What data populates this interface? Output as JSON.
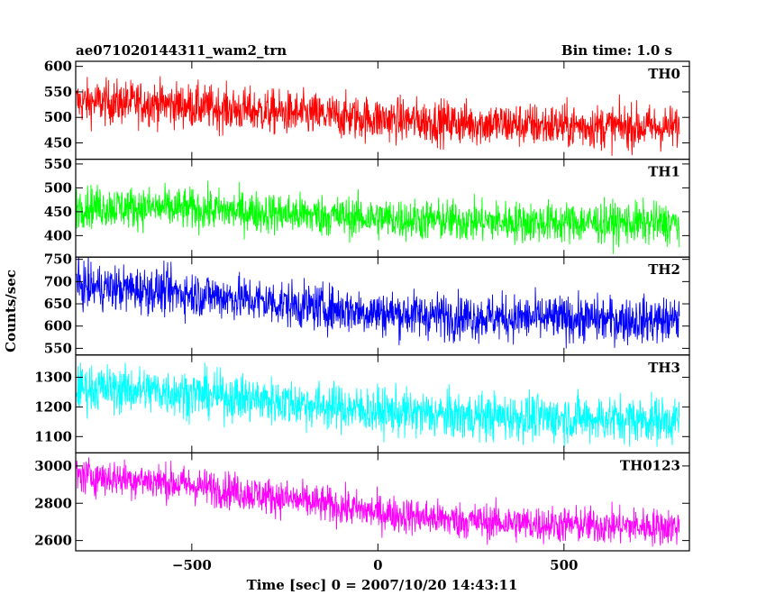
{
  "header": {
    "title": "ae071020144311_wam2_trn",
    "bin_time": "Bin time: 1.0 s"
  },
  "chart_data": {
    "type": "line",
    "xlabel": "Time [sec] 0 = 2007/10/20 14:43:11",
    "ylabel": "Counts/sec",
    "xlim": [
      -812,
      837
    ],
    "x_ticks": [
      -500,
      0,
      500
    ],
    "x_tick_labels": [
      "−500",
      "0",
      "500"
    ],
    "x_range_data": [
      -810,
      810
    ],
    "panels": [
      {
        "name": "TH0",
        "color": "#ff0000",
        "ylim": [
          418,
          610
        ],
        "y_ticks": [
          450,
          500,
          550,
          600
        ],
        "y_tick_labels": [
          "450",
          "500",
          "550",
          "600"
        ],
        "trend": [
          [
            -810,
            530
          ],
          [
            -600,
            528
          ],
          [
            -400,
            516
          ],
          [
            -200,
            506
          ],
          [
            0,
            497
          ],
          [
            200,
            490
          ],
          [
            400,
            485
          ],
          [
            600,
            482
          ],
          [
            810,
            480
          ]
        ],
        "noise": 22
      },
      {
        "name": "TH1",
        "color": "#00ff00",
        "ylim": [
          355,
          560
        ],
        "y_ticks": [
          400,
          450,
          500,
          550
        ],
        "y_tick_labels": [
          "400",
          "450",
          "500",
          "550"
        ],
        "trend": [
          [
            -810,
            462
          ],
          [
            -600,
            458
          ],
          [
            -400,
            452
          ],
          [
            -200,
            444
          ],
          [
            0,
            436
          ],
          [
            200,
            431
          ],
          [
            400,
            428
          ],
          [
            600,
            427
          ],
          [
            810,
            425
          ]
        ],
        "noise": 22
      },
      {
        "name": "TH2",
        "color": "#0000ff",
        "ylim": [
          535,
          755
        ],
        "y_ticks": [
          550,
          600,
          650,
          700,
          750
        ],
        "y_tick_labels": [
          "550",
          "600",
          "650",
          "700",
          "750"
        ],
        "trend": [
          [
            -810,
            690
          ],
          [
            -600,
            680
          ],
          [
            -400,
            665
          ],
          [
            -200,
            645
          ],
          [
            0,
            630
          ],
          [
            200,
            622
          ],
          [
            400,
            618
          ],
          [
            600,
            615
          ],
          [
            810,
            612
          ]
        ],
        "noise": 26
      },
      {
        "name": "TH3",
        "color": "#00ffff",
        "ylim": [
          1045,
          1375
        ],
        "y_ticks": [
          1100,
          1200,
          1300
        ],
        "y_tick_labels": [
          "1100",
          "1200",
          "1300"
        ],
        "trend": [
          [
            -810,
            1265
          ],
          [
            -600,
            1255
          ],
          [
            -400,
            1235
          ],
          [
            -200,
            1210
          ],
          [
            0,
            1185
          ],
          [
            200,
            1170
          ],
          [
            400,
            1165
          ],
          [
            600,
            1160
          ],
          [
            810,
            1155
          ]
        ],
        "noise": 40
      },
      {
        "name": "TH0123",
        "color": "#ff00ff",
        "ylim": [
          2545,
          3070
        ],
        "y_ticks": [
          2600,
          2800,
          3000
        ],
        "y_tick_labels": [
          "2600",
          "2800",
          "3000"
        ],
        "trend": [
          [
            -810,
            2950
          ],
          [
            -600,
            2920
          ],
          [
            -400,
            2870
          ],
          [
            -200,
            2810
          ],
          [
            0,
            2750
          ],
          [
            200,
            2710
          ],
          [
            400,
            2690
          ],
          [
            600,
            2680
          ],
          [
            810,
            2672
          ]
        ],
        "noise": 50
      }
    ]
  }
}
